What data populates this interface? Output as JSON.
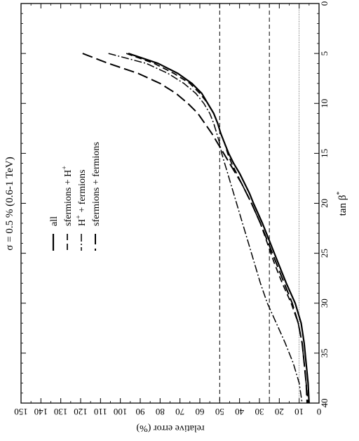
{
  "chart_data": {
    "type": "line",
    "title": "σ = 0.5 %  (0.6-1 TeV)",
    "xlabel": "tan β",
    "xlabel_sup": "*",
    "ylabel": "relative error (%)",
    "xlim": [
      0,
      40
    ],
    "ylim": [
      0,
      150
    ],
    "x_ticks": [
      0,
      5,
      10,
      15,
      20,
      25,
      30,
      35,
      40
    ],
    "y_ticks": [
      0,
      10,
      20,
      30,
      40,
      50,
      60,
      70,
      80,
      90,
      100,
      110,
      120,
      130,
      140,
      150
    ],
    "grid": false,
    "orientation": "rotated 90° clockwise",
    "legend_position": "upper-left (rotated)",
    "reference_lines": [
      {
        "y": 50,
        "style": "dashed"
      },
      {
        "y": 25,
        "style": "dashed"
      },
      {
        "y": 10,
        "style": "dotted"
      }
    ],
    "series": [
      {
        "name": "all",
        "dash": "solid",
        "width": 2.2,
        "x": [
          5,
          6,
          7,
          8,
          9,
          10,
          11,
          12,
          13,
          14,
          15,
          16,
          17,
          18,
          19,
          20,
          22,
          24,
          26,
          28,
          30,
          32,
          34,
          36,
          38,
          40
        ],
        "y": [
          96,
          81,
          71,
          64,
          59,
          56,
          53,
          51,
          49.5,
          47.5,
          45.5,
          43,
          40,
          37.5,
          35,
          33,
          28.5,
          24.5,
          20.5,
          16.5,
          12,
          9,
          7.5,
          6.5,
          5.5,
          5
        ]
      },
      {
        "name": "sfermions + H",
        "name_sup": "+",
        "dash": "9,5",
        "width": 1.7,
        "x": [
          5,
          6,
          7,
          8,
          9,
          10,
          11,
          12,
          13,
          14,
          15,
          16,
          17,
          18,
          19,
          20,
          22,
          24,
          26,
          28,
          30,
          32,
          34,
          36,
          38,
          40
        ],
        "y": [
          97,
          83,
          73,
          65,
          60,
          56,
          53,
          51,
          49.5,
          47.5,
          46,
          44,
          41.5,
          39,
          36.5,
          34,
          29.5,
          26,
          22.5,
          18.5,
          14,
          10.5,
          8.5,
          7.5,
          6.5,
          5.5
        ]
      },
      {
        "name": "H + fermions",
        "name_sup": "+",
        "dash": "11,3,2,3",
        "width": 1.5,
        "x": [
          5,
          6,
          7,
          8,
          9,
          10,
          11,
          12,
          13,
          14,
          15,
          16,
          17,
          18,
          19,
          20,
          22,
          24,
          26,
          28,
          30,
          32,
          34,
          36,
          38,
          40
        ],
        "y": [
          106,
          87,
          76,
          68,
          62,
          58,
          55,
          53,
          51.5,
          50,
          49,
          47.5,
          46,
          44.5,
          43,
          41.5,
          38.5,
          35.5,
          32.5,
          29.5,
          26,
          21.5,
          17,
          13,
          10,
          8.5
        ]
      },
      {
        "name": "sfermions + fermions",
        "dash": "15,6",
        "width": 2,
        "x": [
          5,
          6,
          7,
          8,
          9,
          10,
          11,
          12,
          13,
          14,
          15,
          16,
          17,
          18,
          19,
          20,
          22,
          24,
          26,
          28,
          30,
          32,
          34,
          36,
          38,
          40
        ],
        "y": [
          119,
          106,
          91,
          80,
          72,
          66,
          61,
          57.5,
          54,
          51,
          48,
          45,
          42,
          39,
          36.5,
          34,
          29.5,
          25.5,
          21.5,
          17.5,
          13.5,
          10.5,
          8.5,
          7.5,
          6.5,
          6
        ]
      }
    ]
  }
}
